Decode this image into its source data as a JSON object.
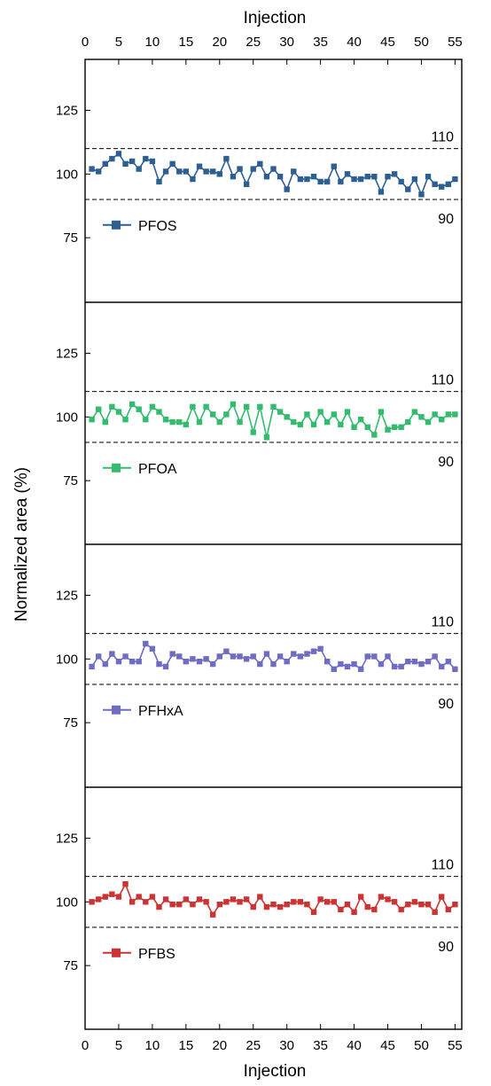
{
  "chart_data": {
    "type": "line",
    "xlabel_top": "Injection",
    "xlabel_bottom": "Injection",
    "ylabel": "Normalized area (%)",
    "xlim": [
      0,
      56
    ],
    "xticks": [
      0,
      5,
      10,
      15,
      20,
      25,
      30,
      35,
      40,
      45,
      50,
      55
    ],
    "ylim": [
      50,
      145
    ],
    "yticks": [
      75,
      100,
      125
    ],
    "reference_lines": [
      110,
      90
    ],
    "x": [
      1,
      2,
      3,
      4,
      5,
      6,
      7,
      8,
      9,
      10,
      11,
      12,
      13,
      14,
      15,
      16,
      17,
      18,
      19,
      20,
      21,
      22,
      23,
      24,
      25,
      26,
      27,
      28,
      29,
      30,
      31,
      32,
      33,
      34,
      35,
      36,
      37,
      38,
      39,
      40,
      41,
      42,
      43,
      44,
      45,
      46,
      47,
      48,
      49,
      50,
      51,
      52,
      53,
      54,
      55
    ],
    "panels": [
      {
        "name": "PFOS",
        "color": "#2e5f93",
        "values": [
          102,
          101,
          104,
          106,
          108,
          104,
          105,
          102,
          106,
          105,
          97,
          101,
          104,
          101,
          101,
          98,
          103,
          101,
          101,
          100,
          106,
          99,
          102,
          96,
          102,
          104,
          99,
          102,
          99,
          94,
          101,
          98,
          98,
          99,
          97,
          97,
          103,
          97,
          100,
          98,
          98,
          99,
          99,
          93,
          99,
          100,
          97,
          94,
          98,
          92,
          99,
          96,
          95,
          96,
          98
        ]
      },
      {
        "name": "PFOA",
        "color": "#33bb6e",
        "values": [
          99,
          103,
          98,
          104,
          102,
          99,
          105,
          103,
          99,
          104,
          102,
          99,
          98,
          98,
          97,
          104,
          98,
          104,
          101,
          98,
          101,
          105,
          98,
          104,
          94,
          104,
          92,
          104,
          102,
          100,
          98,
          97,
          101,
          97,
          102,
          98,
          101,
          97,
          102,
          96,
          99,
          96,
          93,
          102,
          95,
          96,
          96,
          98,
          102,
          100,
          98,
          101,
          99,
          101,
          101
        ]
      },
      {
        "name": "PFHxA",
        "color": "#6f6cc4",
        "values": [
          97,
          101,
          98,
          102,
          99,
          101,
          99,
          99,
          106,
          104,
          98,
          97,
          102,
          101,
          99,
          100,
          99,
          100,
          98,
          101,
          103,
          101,
          101,
          100,
          101,
          98,
          102,
          98,
          101,
          99,
          102,
          101,
          102,
          103,
          104,
          99,
          96,
          98,
          97,
          98,
          96,
          101,
          101,
          98,
          101,
          97,
          97,
          99,
          99,
          98,
          99,
          101,
          97,
          99,
          96
        ]
      },
      {
        "name": "PFBS",
        "color": "#cc3333",
        "values": [
          100,
          101,
          102,
          103,
          102,
          107,
          100,
          102,
          100,
          102,
          98,
          101,
          99,
          99,
          101,
          99,
          101,
          100,
          95,
          99,
          100,
          101,
          100,
          101,
          98,
          102,
          98,
          99,
          98,
          99,
          100,
          100,
          99,
          96,
          101,
          100,
          100,
          97,
          99,
          96,
          102,
          98,
          97,
          102,
          101,
          100,
          97,
          99,
          100,
          99,
          99,
          96,
          102,
          97,
          99
        ]
      }
    ]
  }
}
